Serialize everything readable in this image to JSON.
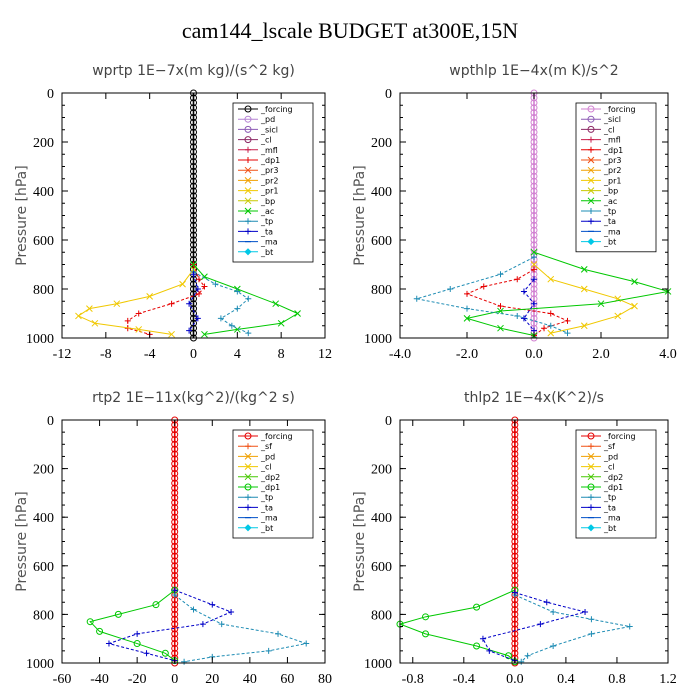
{
  "title": "cam144_lscale  BUDGET at300E,15N",
  "chart_data": [
    {
      "type": "line",
      "title": "wprtp   1E−7x(m kg)/(s^2 kg)",
      "ylabel": "Pressure [hPa]",
      "xlim": [
        -12,
        12
      ],
      "ylim": [
        1000,
        0
      ],
      "xticks": [
        -12,
        -8,
        -4,
        0,
        4,
        8,
        12
      ],
      "xtick_labels": [
        "-12",
        "-8",
        "-4",
        "0",
        "4",
        "8",
        "12"
      ],
      "yticks": [
        0,
        200,
        400,
        600,
        800,
        1000
      ],
      "legend_position": "top-right",
      "series": [
        {
          "name": "_forcing",
          "color": "#000000",
          "marker": "o",
          "points": [
            [
              0,
              0
            ],
            [
              0,
              1000
            ]
          ]
        },
        {
          "name": "_pd",
          "color": "#b482d2",
          "marker": "o",
          "points": []
        },
        {
          "name": "_sicl",
          "color": "#8c5ab4",
          "marker": "o",
          "points": []
        },
        {
          "name": "_cl",
          "color": "#8c2864",
          "marker": "o",
          "points": []
        },
        {
          "name": "_mfl",
          "color": "#c81e4b",
          "marker": "+",
          "points": []
        },
        {
          "name": "_dp1",
          "color": "#e60000",
          "marker": "+",
          "points": [
            [
              0,
              700
            ],
            [
              0.5,
              760
            ],
            [
              1,
              790
            ],
            [
              0.5,
              820
            ],
            [
              -2,
              860
            ],
            [
              -5,
              900
            ],
            [
              -6,
              930
            ],
            [
              -6,
              960
            ],
            [
              -4,
              985
            ]
          ]
        },
        {
          "name": "_pr3",
          "color": "#f05014",
          "marker": "x",
          "points": []
        },
        {
          "name": "_pr2",
          "color": "#f0a000",
          "marker": "x",
          "points": []
        },
        {
          "name": "_pr1",
          "color": "#f0c800",
          "marker": "x",
          "points": [
            [
              0,
              720
            ],
            [
              -1,
              780
            ],
            [
              -4,
              830
            ],
            [
              -7,
              860
            ],
            [
              -9.5,
              880
            ],
            [
              -10.5,
              910
            ],
            [
              -9,
              940
            ],
            [
              -5,
              965
            ],
            [
              -2,
              985
            ]
          ]
        },
        {
          "name": "_bp",
          "color": "#c8c800",
          "marker": "x",
          "points": []
        },
        {
          "name": "_ac",
          "color": "#00c800",
          "marker": "x",
          "points": [
            [
              0,
              700
            ],
            [
              1,
              750
            ],
            [
              4,
              800
            ],
            [
              7.5,
              860
            ],
            [
              9.5,
              900
            ],
            [
              8,
              940
            ],
            [
              4,
              965
            ],
            [
              1,
              985
            ]
          ]
        },
        {
          "name": "_tp",
          "color": "#1e8cb4",
          "marker": "+",
          "points": [
            [
              0,
              730
            ],
            [
              2,
              780
            ],
            [
              4,
              810
            ],
            [
              5,
              840
            ],
            [
              4,
              880
            ],
            [
              2.5,
              920
            ],
            [
              3.5,
              950
            ],
            [
              5,
              980
            ]
          ]
        },
        {
          "name": "_ta",
          "color": "#0000c8",
          "marker": "+",
          "points": [
            [
              0,
              740
            ],
            [
              0.4,
              800
            ],
            [
              -0.4,
              860
            ],
            [
              0.4,
              920
            ],
            [
              -0.4,
              970
            ]
          ]
        },
        {
          "name": "_ma",
          "color": "#0050c8",
          "marker": "-",
          "points": []
        },
        {
          "name": "_bt",
          "color": "#00c8e6",
          "marker": "D",
          "points": []
        }
      ]
    },
    {
      "type": "line",
      "title": "wpthlp   1E−4x(m K)/s^2",
      "ylabel": "Pressure [hPa]",
      "xlim": [
        -4,
        4
      ],
      "ylim": [
        1000,
        0
      ],
      "xticks": [
        -4,
        -2,
        0,
        2,
        4
      ],
      "xtick_labels": [
        "-4.0",
        "-2.0",
        "0.0",
        "2.0",
        "4.0"
      ],
      "yticks": [
        0,
        200,
        400,
        600,
        800,
        1000
      ],
      "legend_position": "top-right",
      "series": [
        {
          "name": "_forcing",
          "color": "#d282d2",
          "marker": "o",
          "points": [
            [
              0,
              0
            ],
            [
              0,
              1000
            ]
          ]
        },
        {
          "name": "_sicl",
          "color": "#8c5ab4",
          "marker": "o",
          "points": []
        },
        {
          "name": "_cl",
          "color": "#8c2864",
          "marker": "o",
          "points": []
        },
        {
          "name": "_mfl",
          "color": "#c81e4b",
          "marker": "+",
          "points": []
        },
        {
          "name": "_dp1",
          "color": "#e60000",
          "marker": "+",
          "points": [
            [
              0,
              720
            ],
            [
              -0.5,
              760
            ],
            [
              -1.5,
              790
            ],
            [
              -2,
              820
            ],
            [
              -1,
              870
            ],
            [
              0.5,
              900
            ],
            [
              1,
              930
            ],
            [
              0.3,
              960
            ],
            [
              0,
              990
            ]
          ]
        },
        {
          "name": "_pr3",
          "color": "#f05014",
          "marker": "x",
          "points": []
        },
        {
          "name": "_pr2",
          "color": "#f0a000",
          "marker": "x",
          "points": []
        },
        {
          "name": "_pr1",
          "color": "#f0c800",
          "marker": "x",
          "points": [
            [
              0,
              700
            ],
            [
              0.5,
              760
            ],
            [
              1.5,
              800
            ],
            [
              2.5,
              840
            ],
            [
              3,
              870
            ],
            [
              2.5,
              910
            ],
            [
              1.5,
              950
            ],
            [
              0.5,
              980
            ]
          ]
        },
        {
          "name": "_bp",
          "color": "#c8c800",
          "marker": "x",
          "points": []
        },
        {
          "name": "_ac",
          "color": "#00c800",
          "marker": "x",
          "points": [
            [
              0,
              650
            ],
            [
              1.5,
              720
            ],
            [
              3,
              770
            ],
            [
              4,
              810
            ],
            [
              2,
              860
            ],
            [
              -1,
              890
            ],
            [
              -2,
              920
            ],
            [
              -1,
              960
            ],
            [
              0,
              990
            ]
          ]
        },
        {
          "name": "_tp",
          "color": "#1e8cb4",
          "marker": "+",
          "points": [
            [
              0,
              670
            ],
            [
              -1,
              740
            ],
            [
              -2.5,
              800
            ],
            [
              -3.5,
              840
            ],
            [
              -2,
              880
            ],
            [
              -0.5,
              910
            ],
            [
              0.5,
              950
            ],
            [
              1,
              980
            ]
          ]
        },
        {
          "name": "_ta",
          "color": "#0000c8",
          "marker": "+",
          "points": [
            [
              0,
              760
            ],
            [
              -0.3,
              810
            ],
            [
              0,
              860
            ],
            [
              -0.3,
              920
            ],
            [
              0,
              970
            ]
          ]
        },
        {
          "name": "_ma",
          "color": "#0050c8",
          "marker": "-",
          "points": []
        },
        {
          "name": "_bt",
          "color": "#00c8e6",
          "marker": "D",
          "points": []
        }
      ]
    },
    {
      "type": "line",
      "title": "rtp2   1E−11x(kg^2)/(kg^2 s)",
      "ylabel": "Pressure [hPa]",
      "xlim": [
        -60,
        80
      ],
      "ylim": [
        1000,
        0
      ],
      "xticks": [
        -60,
        -40,
        -20,
        0,
        20,
        40,
        60,
        80
      ],
      "xtick_labels": [
        "-60",
        "-40",
        "-20",
        "0",
        "20",
        "40",
        "60",
        "80"
      ],
      "yticks": [
        0,
        200,
        400,
        600,
        800,
        1000
      ],
      "legend_position": "top-right",
      "series": [
        {
          "name": "_forcing",
          "color": "#e60000",
          "marker": "o",
          "points": [
            [
              0,
              0
            ],
            [
              0,
              1000
            ]
          ]
        },
        {
          "name": "_sf",
          "color": "#f05014",
          "marker": "+",
          "points": []
        },
        {
          "name": "_pd",
          "color": "#f0a000",
          "marker": "x",
          "points": []
        },
        {
          "name": "_cl",
          "color": "#f0c800",
          "marker": "x",
          "points": []
        },
        {
          "name": "_dp2",
          "color": "#46c800",
          "marker": "x",
          "points": []
        },
        {
          "name": "_dp1",
          "color": "#00c800",
          "marker": "o",
          "points": [
            [
              0,
              700
            ],
            [
              -10,
              760
            ],
            [
              -30,
              800
            ],
            [
              -45,
              830
            ],
            [
              -40,
              870
            ],
            [
              -20,
              920
            ],
            [
              -5,
              960
            ],
            [
              0,
              990
            ]
          ]
        },
        {
          "name": "_tp",
          "color": "#1e8cb4",
          "marker": "+",
          "points": [
            [
              0,
              720
            ],
            [
              10,
              780
            ],
            [
              25,
              840
            ],
            [
              55,
              880
            ],
            [
              70,
              920
            ],
            [
              50,
              950
            ],
            [
              20,
              975
            ],
            [
              5,
              995
            ]
          ]
        },
        {
          "name": "_ta",
          "color": "#0000c8",
          "marker": "+",
          "points": [
            [
              0,
              700
            ],
            [
              20,
              760
            ],
            [
              30,
              790
            ],
            [
              15,
              840
            ],
            [
              -20,
              880
            ],
            [
              -35,
              920
            ],
            [
              -15,
              960
            ],
            [
              0,
              990
            ]
          ]
        },
        {
          "name": "_ma",
          "color": "#0050c8",
          "marker": "-",
          "points": []
        },
        {
          "name": "_bt",
          "color": "#00c8e6",
          "marker": "D",
          "points": []
        }
      ]
    },
    {
      "type": "line",
      "title": "thlp2   1E−4x(K^2)/s",
      "ylabel": "Pressure [hPa]",
      "xlim": [
        -0.9,
        1.2
      ],
      "ylim": [
        1000,
        0
      ],
      "xticks": [
        -0.8,
        -0.4,
        0.0,
        0.4,
        0.8,
        1.2
      ],
      "xtick_labels": [
        "-0.8",
        "-0.4",
        "0.0",
        "0.4",
        "0.8",
        "1.2"
      ],
      "yticks": [
        0,
        200,
        400,
        600,
        800,
        1000
      ],
      "legend_position": "top-right",
      "series": [
        {
          "name": "_forcing",
          "color": "#e60000",
          "marker": "o",
          "points": [
            [
              0,
              0
            ],
            [
              0,
              1000
            ]
          ]
        },
        {
          "name": "_sf",
          "color": "#f05014",
          "marker": "+",
          "points": []
        },
        {
          "name": "_pd",
          "color": "#f0a000",
          "marker": "x",
          "points": []
        },
        {
          "name": "_cl",
          "color": "#f0c800",
          "marker": "x",
          "points": []
        },
        {
          "name": "_dp2",
          "color": "#46c800",
          "marker": "x",
          "points": []
        },
        {
          "name": "_dp1",
          "color": "#00c800",
          "marker": "o",
          "points": [
            [
              0,
              700
            ],
            [
              -0.3,
              770
            ],
            [
              -0.7,
              810
            ],
            [
              -0.9,
              840
            ],
            [
              -0.7,
              880
            ],
            [
              -0.3,
              930
            ],
            [
              -0.05,
              970
            ],
            [
              0,
              995
            ]
          ]
        },
        {
          "name": "_tp",
          "color": "#1e8cb4",
          "marker": "+",
          "points": [
            [
              0,
              720
            ],
            [
              0.3,
              790
            ],
            [
              0.6,
              820
            ],
            [
              0.9,
              850
            ],
            [
              0.6,
              880
            ],
            [
              0.3,
              930
            ],
            [
              0.1,
              970
            ],
            [
              0.05,
              995
            ]
          ]
        },
        {
          "name": "_ta",
          "color": "#0000c8",
          "marker": "+",
          "points": [
            [
              0,
              710
            ],
            [
              0.25,
              750
            ],
            [
              0.55,
              790
            ],
            [
              0.2,
              840
            ],
            [
              -0.25,
              900
            ],
            [
              -0.2,
              950
            ],
            [
              0,
              990
            ]
          ]
        },
        {
          "name": "_ma",
          "color": "#0050c8",
          "marker": "-",
          "points": []
        },
        {
          "name": "_bt",
          "color": "#00c8e6",
          "marker": "D",
          "points": []
        }
      ]
    }
  ]
}
